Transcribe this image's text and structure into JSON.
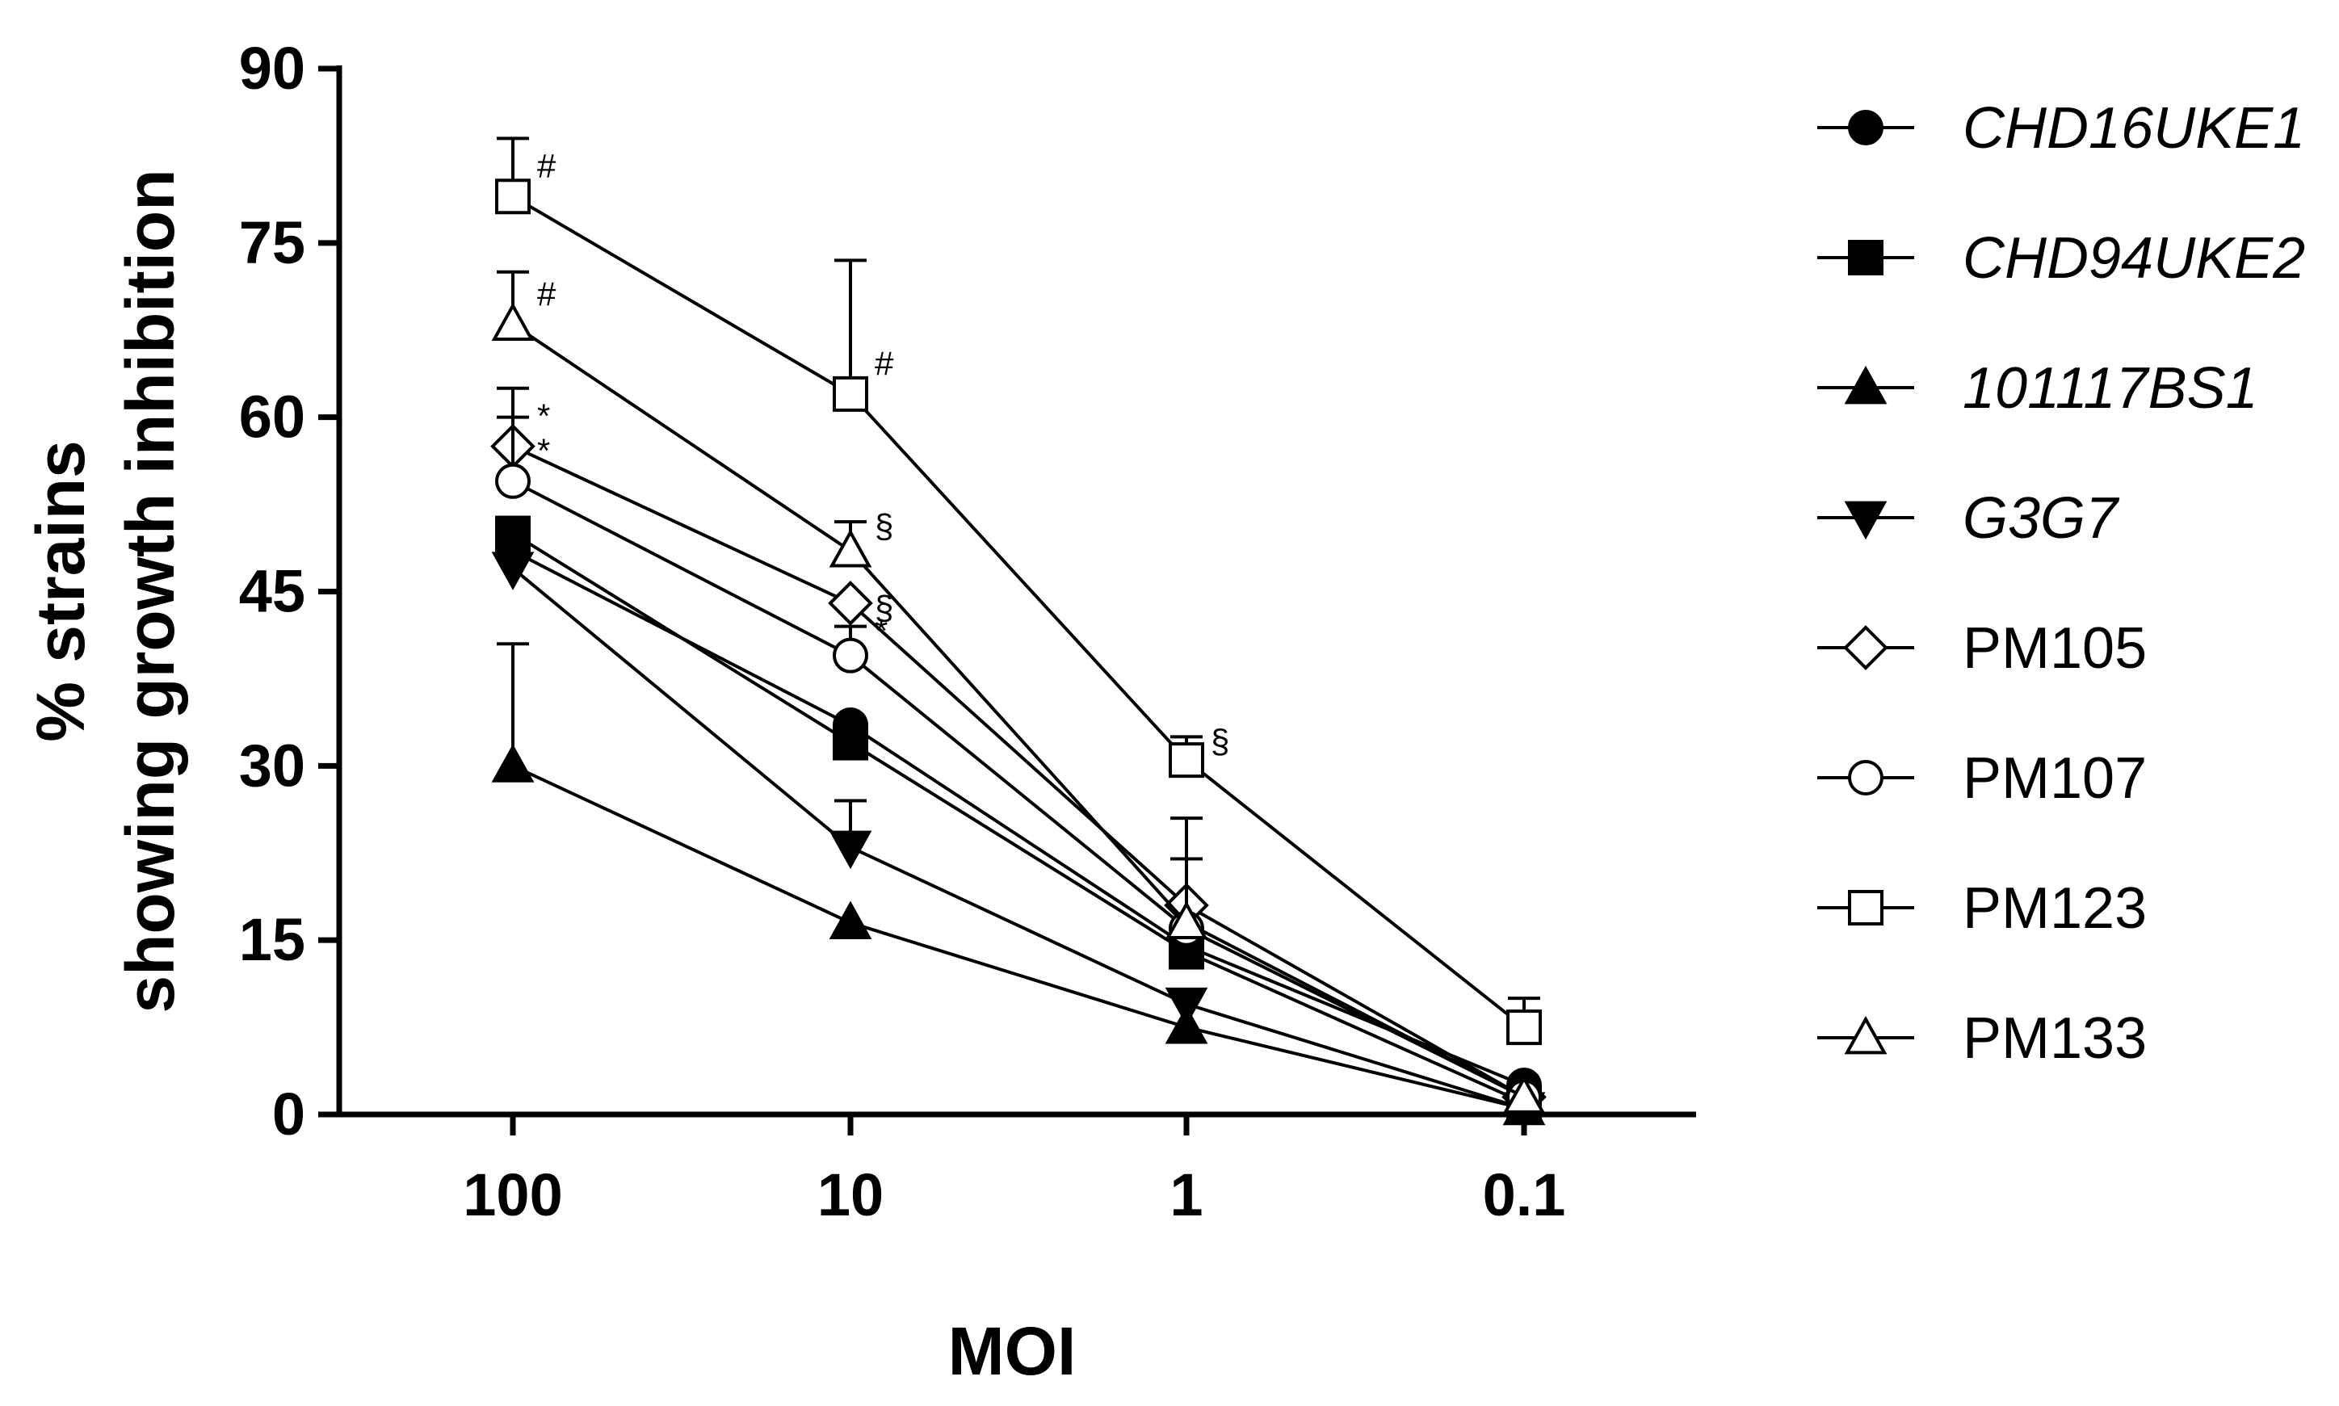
{
  "chart_data": {
    "type": "line",
    "title": "",
    "xlabel": "MOI",
    "ylabel_lines": [
      "% strains",
      "showing growth inhibition"
    ],
    "categories": [
      "100",
      "10",
      "1",
      "0.1"
    ],
    "ylim": [
      0,
      90
    ],
    "yticks": [
      0,
      15,
      30,
      45,
      60,
      75,
      90
    ],
    "grid": false,
    "legend_position": "right",
    "series": [
      {
        "name": "CHD16UKE1",
        "italic": true,
        "marker": "circle",
        "filled": true,
        "values": [
          48.5,
          33.5,
          14.5,
          2.5
        ],
        "errors": [
          0,
          0,
          0,
          0
        ],
        "annotations": [
          "",
          "",
          "",
          ""
        ]
      },
      {
        "name": "CHD94UKE2",
        "italic": true,
        "marker": "square",
        "filled": true,
        "values": [
          50,
          32,
          14,
          1
        ],
        "errors": [
          0,
          0,
          0,
          0
        ],
        "annotations": [
          "",
          "",
          "",
          ""
        ]
      },
      {
        "name": "101117BS1",
        "italic": true,
        "marker": "triangle-up",
        "filled": true,
        "values": [
          30,
          16.5,
          7.5,
          0.5
        ],
        "errors": [
          10.5,
          0,
          0,
          0
        ],
        "annotations": [
          "",
          "",
          "",
          ""
        ]
      },
      {
        "name": "G3G7",
        "italic": true,
        "marker": "triangle-down",
        "filled": true,
        "values": [
          47,
          23,
          9.5,
          0.5
        ],
        "errors": [
          0,
          4,
          0,
          0
        ],
        "annotations": [
          "",
          "",
          "",
          ""
        ]
      },
      {
        "name": "PM105",
        "italic": false,
        "marker": "diamond",
        "filled": false,
        "values": [
          57.5,
          44,
          18,
          1.5
        ],
        "errors": [
          5,
          0,
          7.5,
          0
        ],
        "annotations": [
          "*",
          "§",
          "",
          ""
        ]
      },
      {
        "name": "PM107",
        "italic": false,
        "marker": "circle",
        "filled": false,
        "values": [
          54.5,
          39.5,
          16,
          1.5
        ],
        "errors": [
          5.5,
          2.5,
          6,
          0
        ],
        "annotations": [
          "*",
          "*",
          "",
          ""
        ]
      },
      {
        "name": "PM123",
        "italic": false,
        "marker": "square",
        "filled": false,
        "values": [
          79,
          62,
          30.5,
          7.5
        ],
        "errors": [
          5,
          11.5,
          2,
          2.5
        ],
        "annotations": [
          "#",
          "#",
          "§",
          ""
        ]
      },
      {
        "name": "PM133",
        "italic": false,
        "marker": "triangle-up",
        "filled": false,
        "values": [
          68,
          48.5,
          16.5,
          1.5
        ],
        "errors": [
          4.5,
          2.5,
          0,
          0
        ],
        "annotations": [
          "#",
          "§",
          "",
          ""
        ]
      }
    ]
  }
}
